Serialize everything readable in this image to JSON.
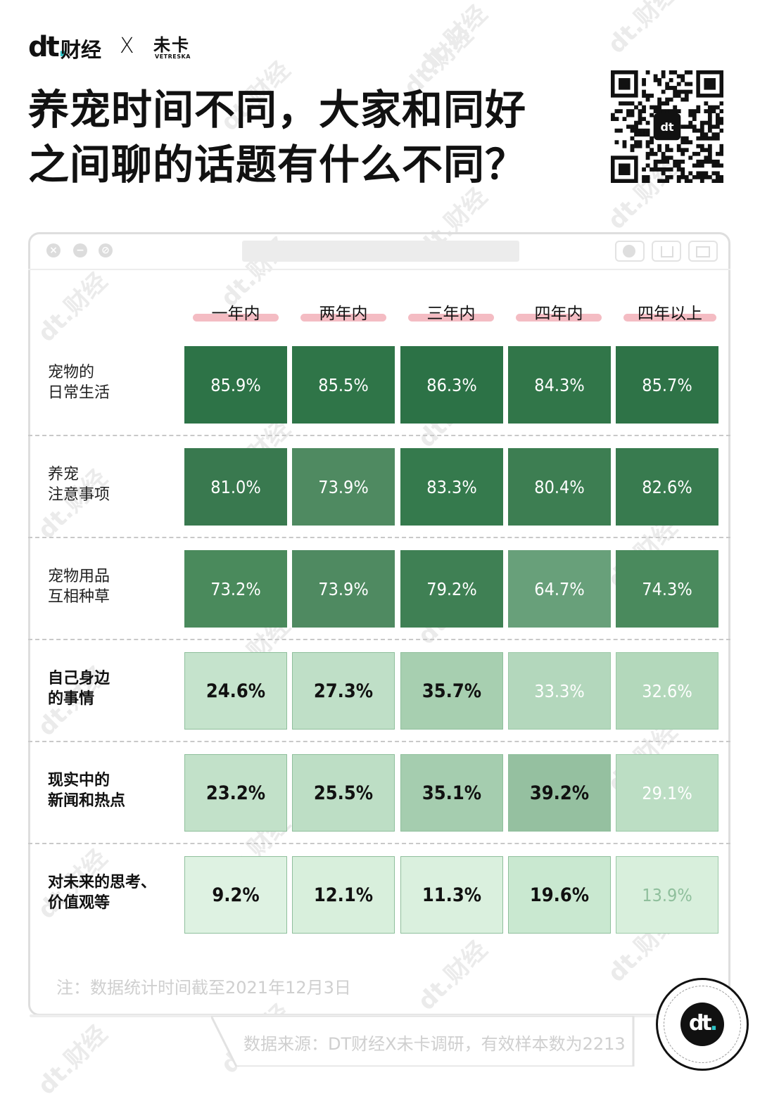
{
  "brand": {
    "dt": "dt",
    "caijing": "财经",
    "x": "X",
    "weika": "未卡",
    "weika_en": "VETRESKA",
    "watermark": "dt.财经"
  },
  "title": {
    "line1": "养宠时间不同，大家和同好",
    "line2": "之间聊的话题有什么不同？"
  },
  "chart_data": {
    "type": "heatmap",
    "columns": [
      "一年内",
      "两年内",
      "三年内",
      "四年内",
      "四年以上"
    ],
    "rows": [
      {
        "label": [
          "宠物的",
          "日常生活"
        ],
        "values": [
          "85.9%",
          "85.5%",
          "86.3%",
          "84.3%",
          "85.7%"
        ]
      },
      {
        "label": [
          "养宠",
          "注意事项"
        ],
        "values": [
          "81.0%",
          "73.9%",
          "83.3%",
          "80.4%",
          "82.6%"
        ]
      },
      {
        "label": [
          "宠物用品",
          "互相种草"
        ],
        "values": [
          "73.2%",
          "73.9%",
          "79.2%",
          "64.7%",
          "74.3%"
        ]
      },
      {
        "label": [
          "自己身边",
          "的事情"
        ],
        "values": [
          "24.6%",
          "27.3%",
          "35.7%",
          "33.3%",
          "32.6%"
        ]
      },
      {
        "label": [
          "现实中的",
          "新闻和热点"
        ],
        "values": [
          "23.2%",
          "25.5%",
          "35.1%",
          "39.2%",
          "29.1%"
        ]
      },
      {
        "label": [
          "对未来的思考、",
          "价值观等"
        ],
        "values": [
          "9.2%",
          "12.1%",
          "11.3%",
          "19.6%",
          "13.9%"
        ]
      }
    ],
    "colors": {
      "dark": [
        "#2d7347",
        "#2f7548",
        "#2c7246",
        "#317649",
        "#2e7347"
      ],
      "mid": [
        "#39794f",
        "#4f8a61",
        "#357a4d",
        "#3d7e52",
        "#387b4f"
      ],
      "mid3": [
        "#4a8a5c",
        "#4f8a61",
        "#3f8054",
        "#68a07a",
        "#4a8a5d"
      ],
      "light4": [
        "#c5e3cc",
        "#bfdfc7",
        "#a7cfb0",
        "#b3d7bc",
        "#b3d8bb"
      ],
      "light5": [
        "#c2e1c9",
        "#bddec5",
        "#a5cdaf",
        "#95c0a0",
        "#bcdec4"
      ],
      "light6": [
        "#def2e2",
        "#d8efdc",
        "#daf0de",
        "#c9e8d0",
        "#d8efdc"
      ]
    }
  },
  "footer": {
    "note": "注：数据统计时间截至2021年12月3日",
    "source": "数据来源：DT财经X未卡调研，有效样本数为2213"
  }
}
